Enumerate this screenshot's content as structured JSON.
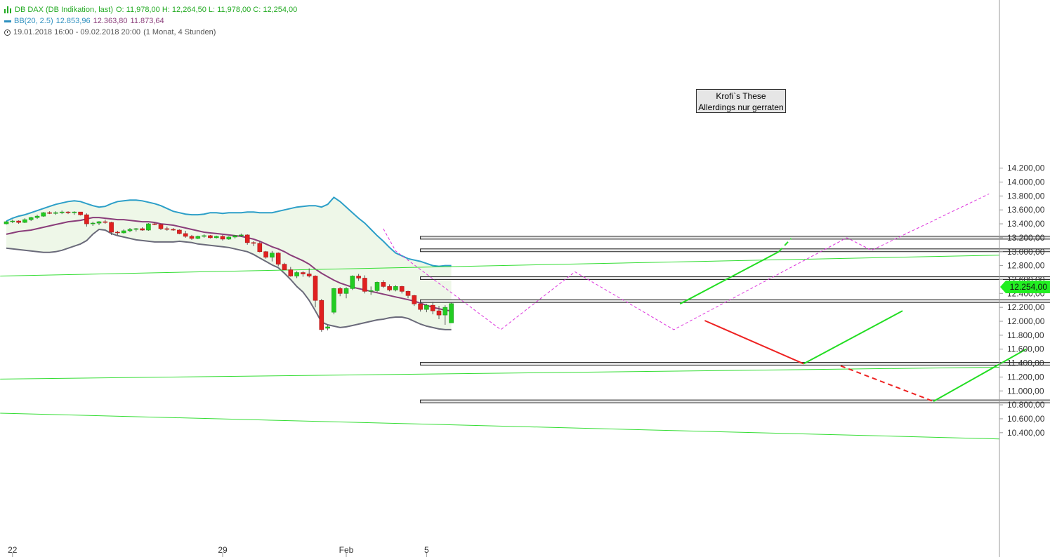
{
  "legend": {
    "title": "DB DAX (DB Indikation, last)",
    "ohlc": "O: 11,978,00  H: 12,264,50  L: 11,978,00  C: 12,254,00",
    "bb_label": "BB(20, 2.5)",
    "bb_upper": "12.853,96",
    "bb_middle": "12.363,80",
    "bb_lower": "11.873,64",
    "range": "19.01.2018 16:00 - 09.02.2018 20:00",
    "period": "(1 Monat, 4 Stunden)"
  },
  "note": {
    "line1": "Krofi`s These",
    "line2": "Allerdings nur gerraten"
  },
  "last_price": "12.254,00",
  "colors": {
    "up": "#22cc22",
    "down": "#e02020",
    "bb_upper": "#2c9fc8",
    "bb_middle": "#8a3d7a",
    "bb_lower": "#6a6a7a",
    "bb_fill": "#eef7e8",
    "trend": "#33dd33",
    "forecast_up": "#22dd22",
    "forecast_down": "#ee2222",
    "path_pattern": "#dd33dd"
  },
  "chart_data": {
    "type": "candlestick",
    "y_axis": {
      "min": 10300,
      "max": 14300,
      "ticks": [
        10400,
        10600,
        10800,
        11000,
        11200,
        11400,
        11600,
        11800,
        12000,
        12200,
        12400,
        12600,
        12800,
        13000,
        13200,
        13400,
        13600,
        13800,
        14000,
        14200
      ],
      "tick_labels": [
        "10.400,00",
        "10.600,00",
        "10.800,00",
        "11.000,00",
        "11.200,00",
        "11.400,00",
        "11.600,00",
        "11.800,00",
        "12.000,00",
        "12.200,00",
        "12.400,00",
        "12.600,00",
        "12.800,00",
        "13.000,00",
        "13.200,00",
        "13.400,00",
        "13.600,00",
        "13.800,00",
        "14.000,00",
        "14.200,00"
      ]
    },
    "x_axis": {
      "labels": [
        {
          "label": "22",
          "bar": 1
        },
        {
          "label": "29",
          "bar": 35
        },
        {
          "label": "Feb",
          "bar": 55
        },
        {
          "label": "5",
          "bar": 68
        }
      ]
    },
    "candles": [
      [
        13400,
        13440,
        13390,
        13430
      ],
      [
        13430,
        13460,
        13410,
        13440
      ],
      [
        13440,
        13450,
        13400,
        13420
      ],
      [
        13420,
        13480,
        13410,
        13460
      ],
      [
        13460,
        13500,
        13440,
        13490
      ],
      [
        13490,
        13530,
        13470,
        13510
      ],
      [
        13510,
        13570,
        13500,
        13560
      ],
      [
        13560,
        13580,
        13540,
        13550
      ],
      [
        13550,
        13580,
        13530,
        13560
      ],
      [
        13560,
        13590,
        13540,
        13570
      ],
      [
        13570,
        13580,
        13540,
        13560
      ],
      [
        13560,
        13580,
        13530,
        13570
      ],
      [
        13570,
        13570,
        13520,
        13530
      ],
      [
        13530,
        13550,
        13360,
        13400
      ],
      [
        13400,
        13430,
        13370,
        13410
      ],
      [
        13410,
        13440,
        13380,
        13430
      ],
      [
        13430,
        13460,
        13400,
        13420
      ],
      [
        13420,
        13430,
        13240,
        13280
      ],
      [
        13280,
        13300,
        13240,
        13270
      ],
      [
        13270,
        13320,
        13260,
        13300
      ],
      [
        13300,
        13340,
        13280,
        13320
      ],
      [
        13320,
        13340,
        13290,
        13330
      ],
      [
        13330,
        13350,
        13300,
        13310
      ],
      [
        13310,
        13410,
        13300,
        13400
      ],
      [
        13400,
        13420,
        13380,
        13390
      ],
      [
        13390,
        13400,
        13310,
        13330
      ],
      [
        13330,
        13360,
        13300,
        13320
      ],
      [
        13320,
        13340,
        13300,
        13310
      ],
      [
        13310,
        13320,
        13250,
        13260
      ],
      [
        13260,
        13300,
        13200,
        13220
      ],
      [
        13220,
        13240,
        13170,
        13190
      ],
      [
        13190,
        13230,
        13180,
        13220
      ],
      [
        13220,
        13250,
        13200,
        13230
      ],
      [
        13230,
        13240,
        13190,
        13200
      ],
      [
        13200,
        13230,
        13190,
        13220
      ],
      [
        13220,
        13240,
        13160,
        13180
      ],
      [
        13180,
        13220,
        13170,
        13210
      ],
      [
        13210,
        13240,
        13190,
        13230
      ],
      [
        13230,
        13260,
        13210,
        13240
      ],
      [
        13240,
        13250,
        13100,
        13130
      ],
      [
        13130,
        13150,
        13080,
        13120
      ],
      [
        13120,
        13150,
        12990,
        13000
      ],
      [
        13000,
        13010,
        12900,
        12920
      ],
      [
        12920,
        13010,
        12860,
        12980
      ],
      [
        12980,
        12990,
        12790,
        12820
      ],
      [
        12820,
        12840,
        12760,
        12740
      ],
      [
        12740,
        12780,
        12640,
        12650
      ],
      [
        12650,
        12720,
        12620,
        12700
      ],
      [
        12700,
        12720,
        12640,
        12680
      ],
      [
        12680,
        12760,
        12630,
        12650
      ],
      [
        12650,
        12660,
        12200,
        12300
      ],
      [
        12300,
        12320,
        11850,
        11880
      ],
      [
        11900,
        11950,
        11870,
        11920
      ],
      [
        12130,
        12480,
        12100,
        12470
      ],
      [
        12470,
        12490,
        12360,
        12400
      ],
      [
        12400,
        12490,
        12330,
        12470
      ],
      [
        12470,
        12660,
        12450,
        12650
      ],
      [
        12650,
        12680,
        12580,
        12620
      ],
      [
        12620,
        12660,
        12400,
        12430
      ],
      [
        12430,
        12500,
        12380,
        12440
      ],
      [
        12440,
        12570,
        12420,
        12560
      ],
      [
        12560,
        12590,
        12480,
        12500
      ],
      [
        12500,
        12530,
        12430,
        12450
      ],
      [
        12450,
        12520,
        12430,
        12500
      ],
      [
        12500,
        12510,
        12400,
        12430
      ],
      [
        12430,
        12440,
        12330,
        12370
      ],
      [
        12370,
        12380,
        12220,
        12250
      ],
      [
        12250,
        12270,
        12140,
        12170
      ],
      [
        12170,
        12250,
        12130,
        12230
      ],
      [
        12230,
        12280,
        12100,
        12150
      ],
      [
        12150,
        12220,
        12030,
        12090
      ],
      [
        12090,
        12230,
        11950,
        12200
      ],
      [
        11978,
        12264.5,
        11978,
        12254
      ]
    ],
    "bollinger": {
      "period": 20,
      "k": 2.5,
      "upper": [
        13440,
        13480,
        13510,
        13530,
        13560,
        13590,
        13620,
        13650,
        13680,
        13700,
        13720,
        13730,
        13720,
        13690,
        13660,
        13640,
        13650,
        13690,
        13720,
        13730,
        13740,
        13740,
        13730,
        13710,
        13690,
        13660,
        13620,
        13580,
        13560,
        13540,
        13530,
        13530,
        13540,
        13560,
        13560,
        13550,
        13560,
        13560,
        13560,
        13570,
        13570,
        13560,
        13560,
        13560,
        13580,
        13600,
        13620,
        13640,
        13650,
        13660,
        13660,
        13640,
        13680,
        13780,
        13720,
        13640,
        13560,
        13480,
        13410,
        13320,
        13230,
        13150,
        13060,
        12980,
        12940,
        12900,
        12880,
        12860,
        12830,
        12800,
        12790,
        12800,
        12800
      ],
      "middle": [
        13250,
        13270,
        13290,
        13300,
        13310,
        13330,
        13350,
        13370,
        13390,
        13410,
        13430,
        13440,
        13450,
        13470,
        13490,
        13490,
        13480,
        13470,
        13460,
        13460,
        13450,
        13440,
        13430,
        13430,
        13420,
        13400,
        13390,
        13380,
        13360,
        13340,
        13320,
        13300,
        13280,
        13270,
        13260,
        13250,
        13240,
        13230,
        13220,
        13200,
        13180,
        13150,
        13110,
        13070,
        13040,
        13000,
        12950,
        12910,
        12870,
        12820,
        12750,
        12690,
        12640,
        12590,
        12550,
        12520,
        12490,
        12470,
        12450,
        12430,
        12410,
        12390,
        12370,
        12350,
        12330,
        12310,
        12290,
        12260,
        12230,
        12200,
        12180,
        12160,
        12150
      ],
      "lower": [
        13050,
        13040,
        13030,
        13020,
        13010,
        13000,
        12990,
        12990,
        13000,
        13020,
        13050,
        13080,
        13110,
        13160,
        13250,
        13320,
        13310,
        13260,
        13230,
        13210,
        13190,
        13170,
        13160,
        13150,
        13140,
        13140,
        13140,
        13140,
        13150,
        13140,
        13130,
        13110,
        13100,
        13090,
        13080,
        13070,
        13060,
        13040,
        13020,
        13000,
        12960,
        12910,
        12860,
        12810,
        12770,
        12690,
        12600,
        12500,
        12420,
        12300,
        12150,
        11990,
        11950,
        11930,
        11910,
        11920,
        11940,
        11960,
        11980,
        12000,
        12020,
        12030,
        12050,
        12060,
        12060,
        12040,
        12000,
        11960,
        11930,
        11910,
        11890,
        11880,
        11880
      ]
    },
    "horizontal_zones": [
      {
        "low": 13180,
        "high": 13220,
        "from_bar": 67,
        "to_bar": 172
      },
      {
        "low": 13000,
        "high": 13040,
        "from_bar": 67,
        "to_bar": 172
      },
      {
        "low": 12600,
        "high": 12640,
        "from_bar": 67,
        "to_bar": 172
      },
      {
        "low": 12270,
        "high": 12310,
        "from_bar": 67,
        "to_bar": 172
      },
      {
        "low": 11370,
        "high": 11410,
        "from_bar": 67,
        "to_bar": 172
      },
      {
        "low": 10830,
        "high": 10870,
        "from_bar": 67,
        "to_bar": 172
      }
    ],
    "trend_lines": [
      {
        "points": [
          [
            -1,
            12650
          ],
          [
            240,
            12950
          ]
        ]
      },
      {
        "points": [
          [
            -1,
            11170
          ],
          [
            240,
            11340
          ]
        ]
      },
      {
        "points": [
          [
            -1,
            10680
          ],
          [
            172,
            10310
          ]
        ]
      }
    ],
    "forecast_lines": [
      {
        "kind": "up",
        "dashed": false,
        "points": [
          [
            109,
            12250
          ],
          [
            125,
            13000
          ]
        ]
      },
      {
        "kind": "up",
        "dashed": true,
        "points": [
          [
            125,
            13000
          ],
          [
            127,
            13190
          ]
        ]
      },
      {
        "kind": "down",
        "dashed": false,
        "points": [
          [
            113,
            12010
          ],
          [
            129,
            11390
          ]
        ]
      },
      {
        "kind": "up",
        "dashed": false,
        "points": [
          [
            129,
            11390
          ],
          [
            145,
            12150
          ]
        ]
      },
      {
        "kind": "down",
        "dashed": true,
        "points": [
          [
            135,
            11360
          ],
          [
            150,
            10850
          ]
        ]
      },
      {
        "kind": "up",
        "dashed": false,
        "points": [
          [
            150,
            10850
          ],
          [
            165,
            11600
          ]
        ]
      }
    ],
    "pattern_paths": [
      {
        "points": [
          [
            61,
            13330
          ],
          [
            63,
            13010
          ],
          [
            80,
            11880
          ],
          [
            92,
            12710
          ],
          [
            108,
            11880
          ],
          [
            136,
            13200
          ],
          [
            140,
            13020
          ],
          [
            159,
            13830
          ]
        ]
      }
    ]
  }
}
